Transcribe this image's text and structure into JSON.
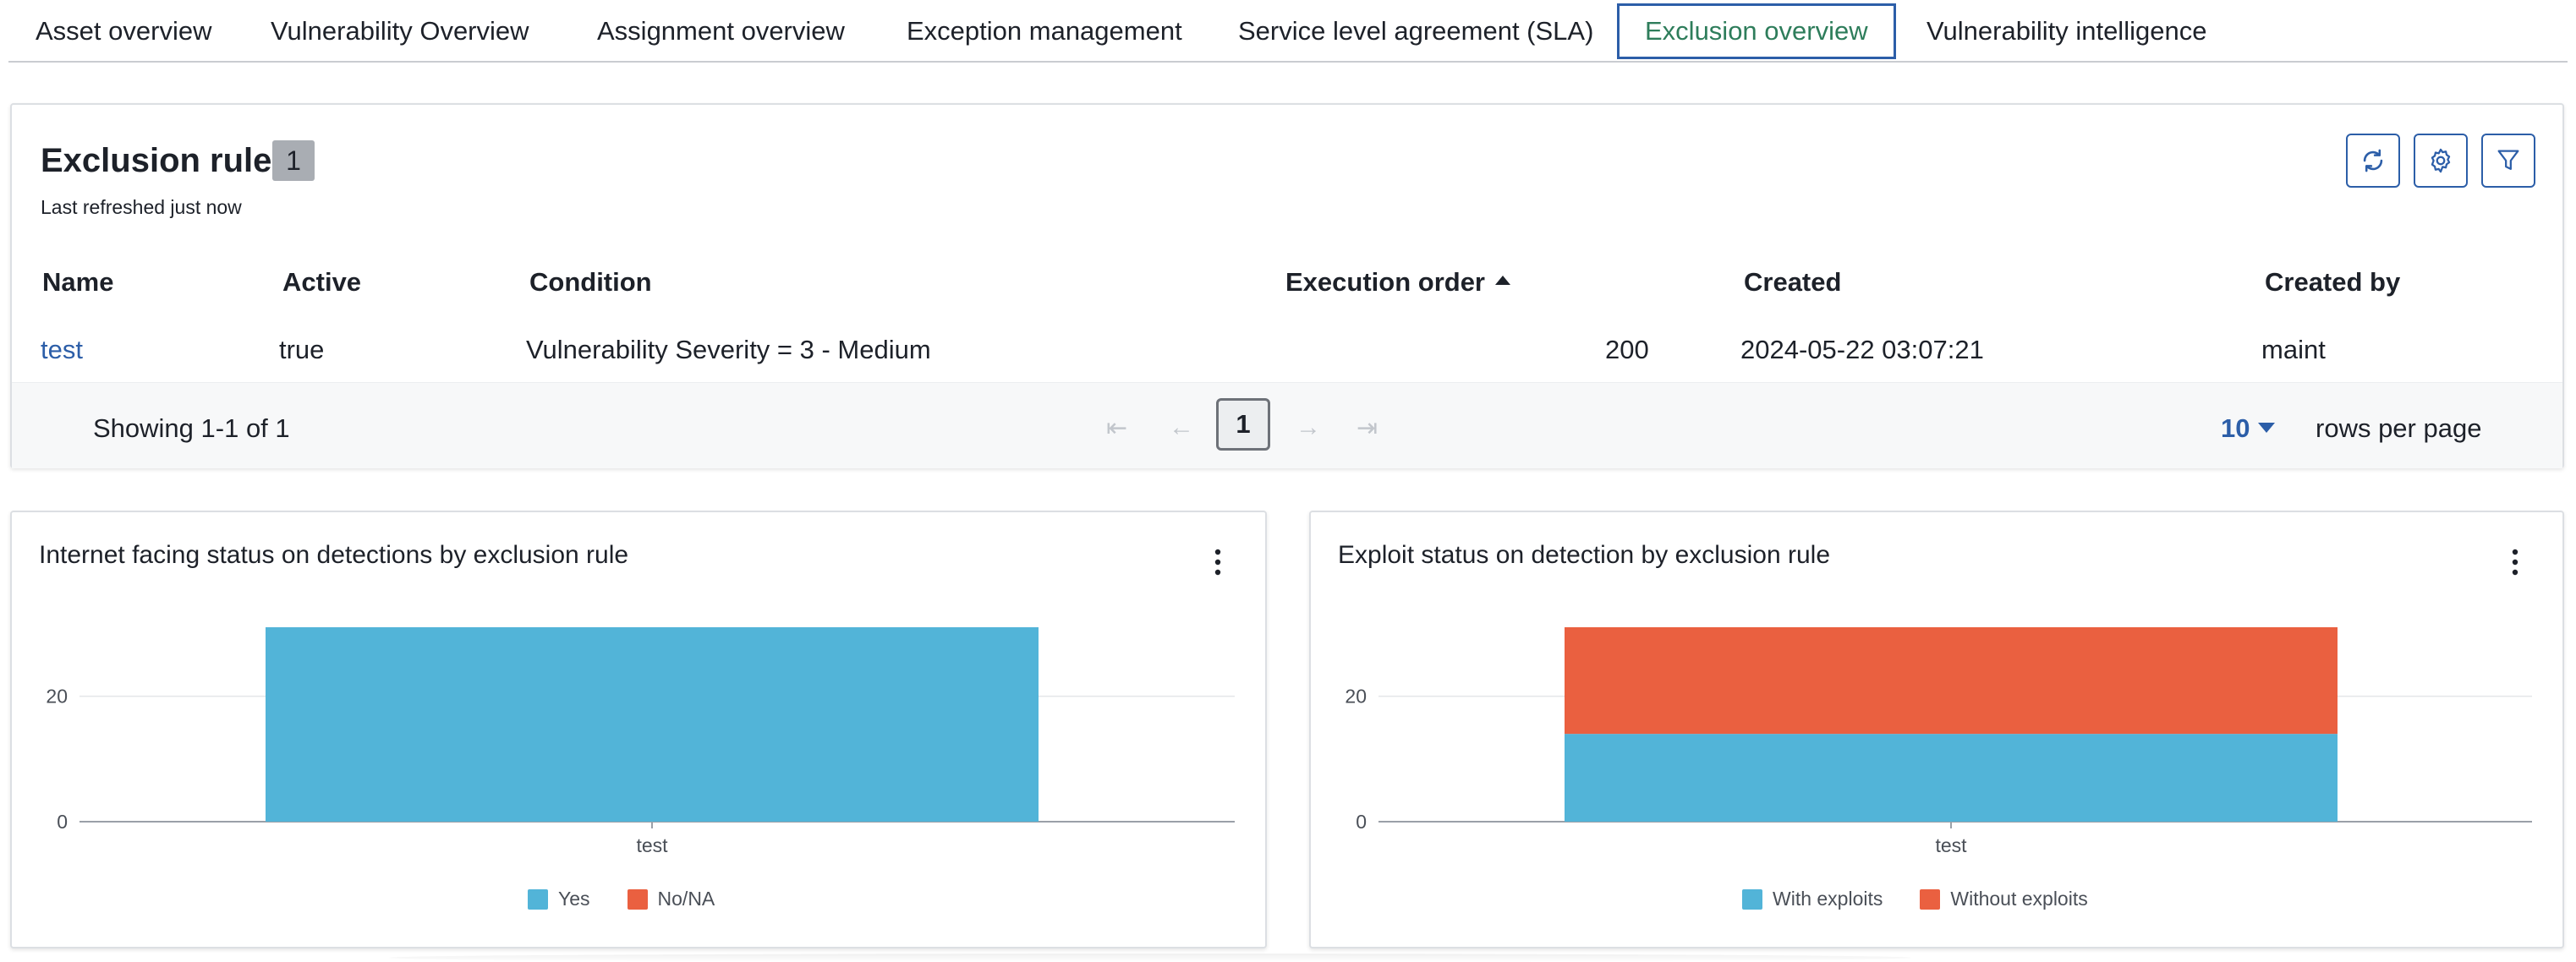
{
  "tabs": [
    {
      "label": "Asset overview"
    },
    {
      "label": "Vulnerability Overview"
    },
    {
      "label": "Assignment overview"
    },
    {
      "label": "Exception management"
    },
    {
      "label": "Service level agreement (SLA)"
    },
    {
      "label": "Exclusion overview",
      "active": true
    },
    {
      "label": "Vulnerability intelligence"
    }
  ],
  "rules": {
    "title": "Exclusion rules",
    "count": "1",
    "last_refreshed": "Last refreshed just now",
    "toolbar": [
      "refresh-icon",
      "gear-icon",
      "filter-icon"
    ],
    "columns": [
      "Name",
      "Active",
      "Condition",
      "Execution order",
      "Created",
      "Created by"
    ],
    "sort": {
      "column": "Execution order",
      "direction": "ascending"
    },
    "rows": [
      {
        "name": "test",
        "active": "true",
        "condition": "Vulnerability Severity = 3 - Medium",
        "execution_order": "200",
        "created": "2024-05-22 03:07:21",
        "created_by": "maint"
      }
    ],
    "pagination": {
      "showing": "Showing 1-1 of 1",
      "current_page": "1",
      "rows_per_page": "10",
      "rows_per_page_label": "rows per page"
    }
  },
  "chart_data": [
    {
      "type": "bar",
      "stacked": true,
      "title": "Internet facing status on detections by exclusion rule",
      "categories": [
        "test"
      ],
      "series": [
        {
          "name": "Yes",
          "values": [
            31
          ],
          "color": "#52b4d8"
        },
        {
          "name": "No/NA",
          "values": [
            0
          ],
          "color": "#ea6040"
        }
      ],
      "yticks": [
        "20",
        "0"
      ],
      "ylim": [
        0,
        31
      ],
      "grid": true,
      "legend": "bottom-center"
    },
    {
      "type": "bar",
      "stacked": true,
      "title": "Exploit status on detection by exclusion rule",
      "categories": [
        "test"
      ],
      "series": [
        {
          "name": "With exploits",
          "values": [
            14
          ],
          "color": "#52b4d8"
        },
        {
          "name": "Without exploits",
          "values": [
            17
          ],
          "color": "#ea6040"
        }
      ],
      "yticks": [
        "20",
        "0"
      ],
      "ylim": [
        0,
        31
      ],
      "grid": true,
      "legend": "bottom-center"
    }
  ],
  "colors": {
    "accent": "#2c5ea8",
    "active_tab_text": "#2e7d5b",
    "badge": "#a9adb3"
  }
}
